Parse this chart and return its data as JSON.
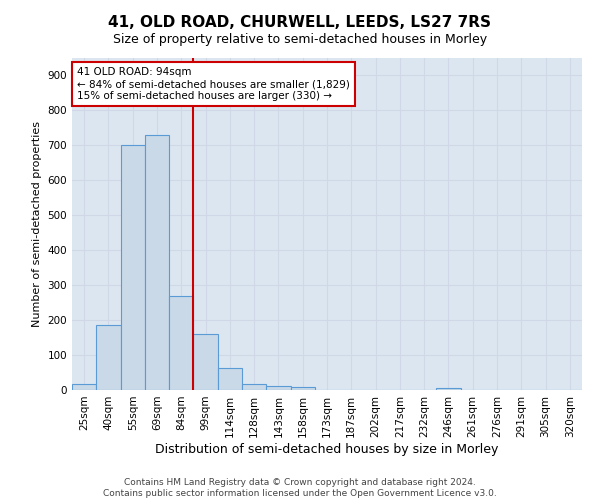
{
  "title": "41, OLD ROAD, CHURWELL, LEEDS, LS27 7RS",
  "subtitle": "Size of property relative to semi-detached houses in Morley",
  "xlabel": "Distribution of semi-detached houses by size in Morley",
  "ylabel": "Number of semi-detached properties",
  "categories": [
    "25sqm",
    "40sqm",
    "55sqm",
    "69sqm",
    "84sqm",
    "99sqm",
    "114sqm",
    "128sqm",
    "143sqm",
    "158sqm",
    "173sqm",
    "187sqm",
    "202sqm",
    "217sqm",
    "232sqm",
    "246sqm",
    "261sqm",
    "276sqm",
    "291sqm",
    "305sqm",
    "320sqm"
  ],
  "values": [
    18,
    185,
    700,
    730,
    270,
    160,
    63,
    17,
    11,
    9,
    0,
    0,
    0,
    0,
    0,
    7,
    0,
    0,
    0,
    0,
    0
  ],
  "bar_color": "#c9d9e8",
  "bar_edge_color": "#5b9bd5",
  "vline_index": 4,
  "annotation_text_line1": "41 OLD ROAD: 94sqm",
  "annotation_text_line2": "← 84% of semi-detached houses are smaller (1,829)",
  "annotation_text_line3": "15% of semi-detached houses are larger (330) →",
  "annotation_box_color": "#ffffff",
  "annotation_box_edge_color": "#cc0000",
  "vline_color": "#cc0000",
  "ylim": [
    0,
    950
  ],
  "yticks": [
    0,
    100,
    200,
    300,
    400,
    500,
    600,
    700,
    800,
    900
  ],
  "grid_color": "#d0d8e8",
  "bg_color": "#dce6f1",
  "footer": "Contains HM Land Registry data © Crown copyright and database right 2024.\nContains public sector information licensed under the Open Government Licence v3.0.",
  "title_fontsize": 11,
  "subtitle_fontsize": 9,
  "xlabel_fontsize": 9,
  "ylabel_fontsize": 8,
  "tick_fontsize": 7.5,
  "annotation_fontsize": 7.5,
  "footer_fontsize": 6.5
}
